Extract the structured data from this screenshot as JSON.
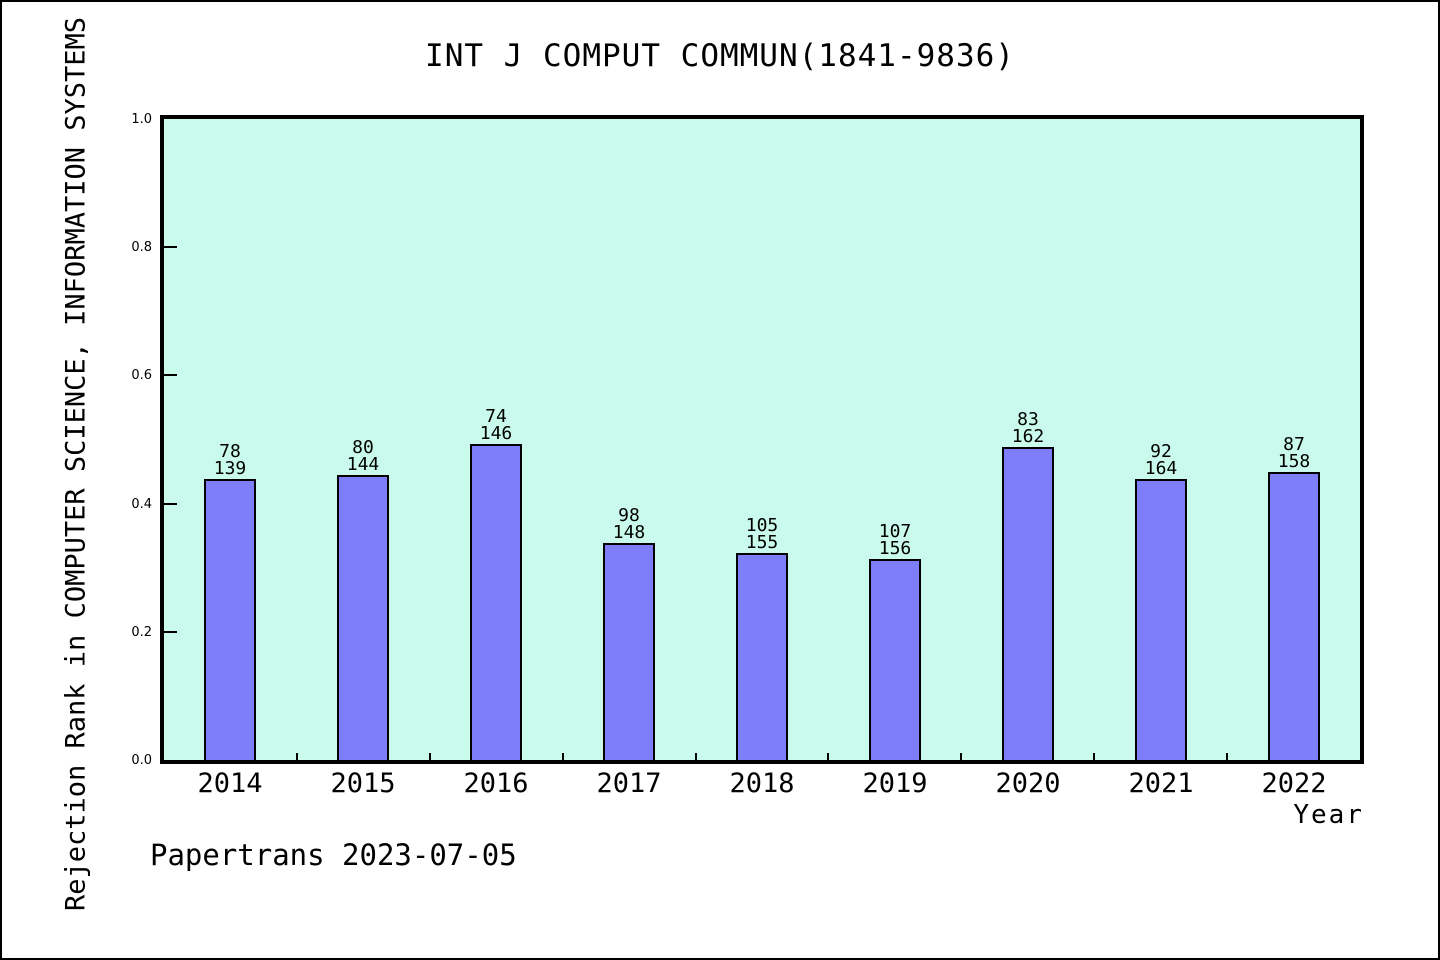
{
  "title": "INT J COMPUT COMMUN(1841-9836)",
  "footer": "Papertrans 2023-07-05",
  "chart_data": {
    "type": "bar",
    "title": "INT J COMPUT COMMUN(1841-9836)",
    "xlabel": "Year",
    "ylabel": "Rejection Rank in COMPUTER SCIENCE, INFORMATION SYSTEMS",
    "categories": [
      "2014",
      "2015",
      "2016",
      "2017",
      "2018",
      "2019",
      "2020",
      "2021",
      "2022"
    ],
    "values": [
      0.439,
      0.444,
      0.493,
      0.338,
      0.323,
      0.314,
      0.488,
      0.439,
      0.449
    ],
    "bar_annotations": [
      {
        "rank": "78",
        "total": "139"
      },
      {
        "rank": "80",
        "total": "144"
      },
      {
        "rank": "74",
        "total": "146"
      },
      {
        "rank": "98",
        "total": "148"
      },
      {
        "rank": "105",
        "total": "155"
      },
      {
        "rank": "107",
        "total": "156"
      },
      {
        "rank": "83",
        "total": "162"
      },
      {
        "rank": "92",
        "total": "164"
      },
      {
        "rank": "87",
        "total": "158"
      }
    ],
    "ylim": [
      0,
      1
    ],
    "yticks": [
      "0.0",
      "0.2",
      "0.4",
      "0.6",
      "0.8",
      "1.0"
    ],
    "grid": false,
    "legend": false,
    "colors": {
      "bar_fill": "#7E7EF8",
      "bar_border": "#000000",
      "plot_background": "#C9FAEB",
      "page_background": "#FFFFFF",
      "text": "#000000"
    }
  }
}
